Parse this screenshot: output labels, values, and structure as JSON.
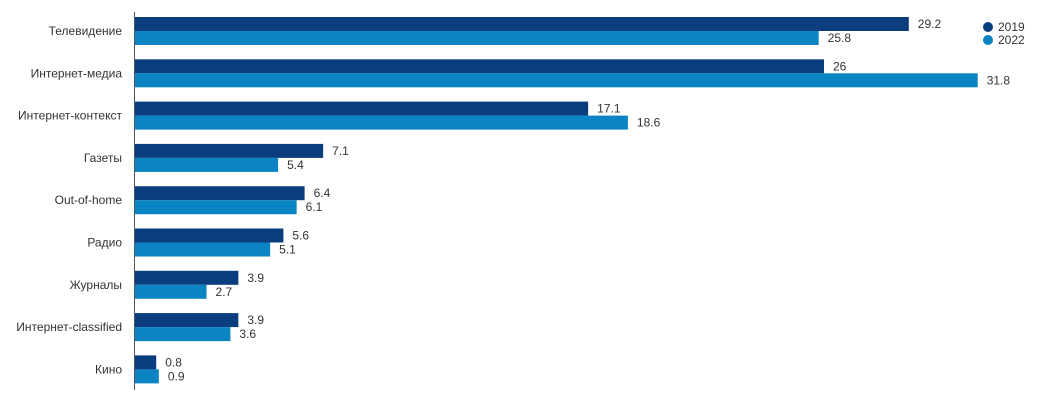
{
  "chart_data": {
    "type": "bar",
    "orientation": "horizontal",
    "title": "",
    "xlabel": "",
    "ylabel": "",
    "xlim": [
      0,
      35
    ],
    "grid": false,
    "legend_position": "top-right",
    "categories": [
      "Телевидение",
      "Интернет-медиа",
      "Интернет-контекст",
      "Газеты",
      "Out-of-home",
      "Радио",
      "Журналы",
      "Интернет-classified",
      "Кино"
    ],
    "series": [
      {
        "name": "2019",
        "color": "#0a3d7e",
        "values": [
          29.2,
          26,
          17.1,
          7.1,
          6.4,
          5.6,
          3.9,
          3.9,
          0.8
        ]
      },
      {
        "name": "2022",
        "color": "#0a84c2",
        "values": [
          25.8,
          31.8,
          18.6,
          5.4,
          6.1,
          5.1,
          2.7,
          3.6,
          0.9
        ]
      }
    ]
  }
}
